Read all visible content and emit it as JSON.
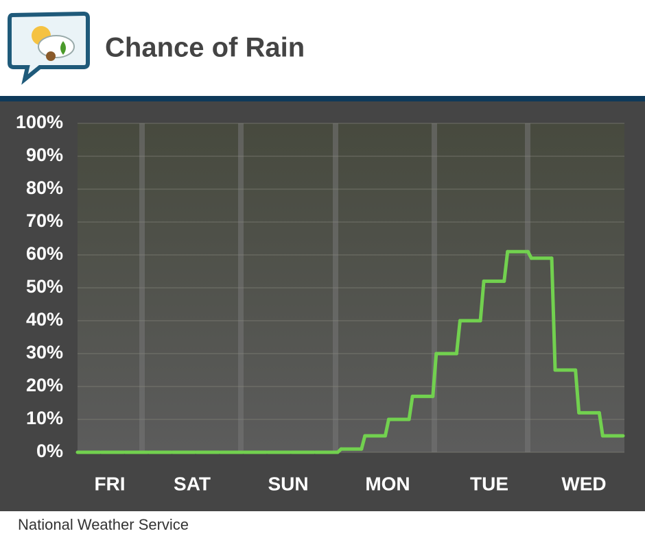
{
  "chart_data": {
    "type": "step-line",
    "title": "Chance of Rain",
    "source": "National Weather Service",
    "categories": [
      null,
      null,
      null,
      null,
      null,
      null,
      null,
      null,
      null,
      null,
      null,
      null,
      null,
      null,
      null,
      null,
      null,
      null,
      null,
      null,
      null,
      null,
      null
    ],
    "day_labels": [
      "FRI",
      "SAT",
      "SUN",
      "MON",
      "TUE",
      "WED"
    ],
    "series": [
      {
        "name": "Chance of Rain",
        "color": "#72d14f",
        "values": [
          0,
          0,
          0,
          0,
          0,
          0,
          0,
          0,
          0,
          0,
          0,
          1,
          5,
          10,
          17,
          30,
          40,
          52,
          61,
          59,
          25,
          12,
          5
        ]
      }
    ],
    "ylim": [
      0,
      100
    ],
    "yticks": [
      {
        "value": 0,
        "label": "0%"
      },
      {
        "value": 10,
        "label": "10%"
      },
      {
        "value": 20,
        "label": "20%"
      },
      {
        "value": 30,
        "label": "30%"
      },
      {
        "value": 40,
        "label": "40%"
      },
      {
        "value": 50,
        "label": "50%"
      },
      {
        "value": 60,
        "label": "60%"
      },
      {
        "value": 70,
        "label": "70%"
      },
      {
        "value": 80,
        "label": "80%"
      },
      {
        "value": 90,
        "label": "90%"
      },
      {
        "value": 100,
        "label": "100%"
      }
    ],
    "grid": true
  }
}
